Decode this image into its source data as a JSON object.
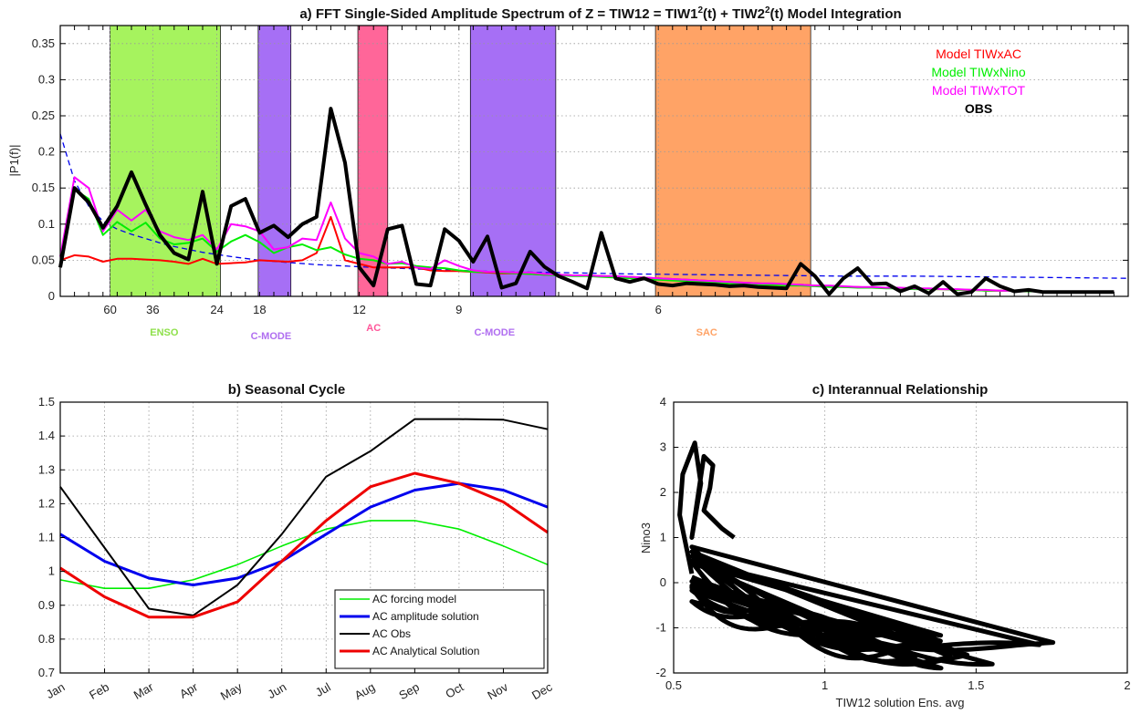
{
  "chart_data": [
    {
      "panel": "a",
      "type": "line",
      "title_parts": [
        "a) FFT Single-Sided Amplitude Spectrum of Z = TIW12 = TIW1",
        "2",
        "(t) + TIW2",
        "2",
        "(t) Model Integration"
      ],
      "ylabel": "|P1(f)|",
      "ylim": [
        0,
        0.375
      ],
      "yticks": [
        "0",
        "0.05",
        "0.1",
        "0.15",
        "0.2",
        "0.25",
        "0.3",
        "0.35"
      ],
      "xlim": [
        0,
        75
      ],
      "xticks": [
        {
          "x": 3.5,
          "label": "60"
        },
        {
          "x": 6.5,
          "label": "36"
        },
        {
          "x": 11,
          "label": "24"
        },
        {
          "x": 14,
          "label": "18"
        },
        {
          "x": 21,
          "label": "12"
        },
        {
          "x": 28,
          "label": "9"
        },
        {
          "x": 42,
          "label": "6"
        }
      ],
      "bands": [
        {
          "x0": 3.5,
          "x1": 11.25,
          "color": "#a6f35e",
          "label": "ENSO",
          "label_color": "#8ee04a",
          "label_x": 7.3,
          "label_row": 1
        },
        {
          "x0": 13.9,
          "x1": 16.2,
          "color": "#a66ff5",
          "label": "C-MODE",
          "label_color": "#b06ef0",
          "label_x": 14.8,
          "label_row": 2
        },
        {
          "x0": 20.9,
          "x1": 23.0,
          "color": "#ff6699",
          "label": "AC",
          "label_color": "#ff5599",
          "label_x": 22.0,
          "label_row": 0
        },
        {
          "x0": 28.8,
          "x1": 34.8,
          "color": "#a66ff5",
          "label": "C-MODE",
          "label_color": "#b06ef0",
          "label_x": 30.5,
          "label_row": 1
        },
        {
          "x0": 41.8,
          "x1": 52.7,
          "color": "#ffa366",
          "label": "SAC",
          "label_color": "#ffa366",
          "label_x": 45.4,
          "label_row": 1
        }
      ],
      "series": [
        {
          "name": "OBS",
          "color": "#000000",
          "width": 4,
          "values": [
            0.04,
            0.15,
            0.13,
            0.095,
            0.125,
            0.172,
            0.127,
            0.085,
            0.06,
            0.051,
            0.145,
            0.045,
            0.125,
            0.135,
            0.088,
            0.098,
            0.082,
            0.1,
            0.11,
            0.26,
            0.185,
            0.04,
            0.015,
            0.093,
            0.098,
            0.017,
            0.015,
            0.093,
            0.077,
            0.048,
            0.083,
            0.012,
            0.018,
            0.062,
            0.041,
            0.028,
            0.02,
            0.011,
            0.088,
            0.025,
            0.02,
            0.025,
            0.017,
            0.015,
            0.018,
            0.017,
            0.016,
            0.014,
            0.015,
            0.013,
            0.012,
            0.011,
            0.045,
            0.028,
            0.003,
            0.025,
            0.039,
            0.017,
            0.018,
            0.007,
            0.014,
            0.004,
            0.02,
            0.003,
            0.006,
            0.025,
            0.014,
            0.007,
            0.009,
            0.006,
            0.006,
            0.006,
            0.006,
            0.006,
            0.006
          ]
        },
        {
          "name": "Model TIWxAC",
          "color": "#ff0000",
          "width": 2,
          "values": [
            0.05,
            0.057,
            0.055,
            0.048,
            0.052,
            0.052,
            0.051,
            0.05,
            0.048,
            0.045,
            0.052,
            0.045,
            0.046,
            0.047,
            0.05,
            0.049,
            0.048,
            0.05,
            0.06,
            0.11,
            0.05,
            0.045,
            0.04,
            0.04,
            0.04,
            0.04,
            0.036,
            0.035,
            0.035,
            0.034,
            0.033,
            0.032,
            0.032,
            0.031,
            0.03,
            0.03,
            0.029,
            0.029,
            0.028,
            0.027,
            0.027,
            0.026,
            0.025,
            0.024,
            0.023,
            0.022,
            0.021,
            0.02,
            0.019,
            0.018,
            0.017,
            0.016,
            0.016,
            0.015,
            0.014,
            0.013,
            0.013,
            0.012,
            0.012,
            0.011,
            0.011,
            0.01,
            0.01,
            0.009,
            0.009,
            0.008,
            0.008,
            0.008,
            0.007,
            0.007,
            0.007,
            0.007,
            0.006,
            0.006,
            0.006
          ]
        },
        {
          "name": "Model TIWxNino",
          "color": "#00ee00",
          "width": 2,
          "values": [
            0.045,
            0.148,
            0.135,
            0.085,
            0.103,
            0.09,
            0.102,
            0.08,
            0.072,
            0.074,
            0.08,
            0.062,
            0.076,
            0.085,
            0.075,
            0.06,
            0.068,
            0.072,
            0.064,
            0.068,
            0.058,
            0.052,
            0.05,
            0.045,
            0.046,
            0.042,
            0.04,
            0.039,
            0.036,
            0.034,
            0.034,
            0.033,
            0.032,
            0.031,
            0.03,
            0.029,
            0.028,
            0.028,
            0.027,
            0.026,
            0.025,
            0.024,
            0.023,
            0.022,
            0.021,
            0.02,
            0.019,
            0.018,
            0.017,
            0.016,
            0.016,
            0.015,
            0.015,
            0.014,
            0.013,
            0.013,
            0.012,
            0.012,
            0.011,
            0.011,
            0.01,
            0.01,
            0.01,
            0.009,
            0.009,
            0.008,
            0.008,
            0.008,
            0.007,
            0.007,
            0.007,
            0.006,
            0.006,
            0.006,
            0.006
          ]
        },
        {
          "name": "Model TIWxTOT",
          "color": "#ff00ff",
          "width": 2,
          "values": [
            0.055,
            0.165,
            0.15,
            0.09,
            0.12,
            0.105,
            0.12,
            0.09,
            0.082,
            0.078,
            0.085,
            0.065,
            0.1,
            0.097,
            0.09,
            0.065,
            0.068,
            0.08,
            0.078,
            0.13,
            0.08,
            0.06,
            0.055,
            0.045,
            0.048,
            0.04,
            0.038,
            0.05,
            0.042,
            0.036,
            0.034,
            0.034,
            0.033,
            0.033,
            0.031,
            0.03,
            0.029,
            0.029,
            0.028,
            0.028,
            0.027,
            0.026,
            0.025,
            0.024,
            0.023,
            0.022,
            0.021,
            0.02,
            0.019,
            0.018,
            0.018,
            0.017,
            0.016,
            0.015,
            0.015,
            0.014,
            0.013,
            0.013,
            0.012,
            0.012,
            0.011,
            0.011,
            0.01,
            0.01,
            0.009,
            0.009,
            0.008,
            0.008,
            0.008,
            0.007,
            0.007,
            0.007,
            0.007,
            0.006,
            0.006
          ]
        },
        {
          "name": "fit",
          "color": "#0000ee",
          "width": 1.3,
          "dashed": true,
          "x": [
            0,
            1,
            2,
            3,
            4,
            5,
            6,
            7,
            8,
            9,
            10,
            12,
            14,
            16,
            18,
            20,
            22,
            25,
            28,
            31,
            35,
            40,
            45,
            50,
            55,
            60,
            65,
            70,
            75
          ],
          "values": [
            0.225,
            0.16,
            0.125,
            0.104,
            0.093,
            0.086,
            0.08,
            0.074,
            0.069,
            0.065,
            0.061,
            0.055,
            0.05,
            0.047,
            0.044,
            0.042,
            0.04,
            0.038,
            0.036,
            0.034,
            0.033,
            0.031,
            0.03,
            0.029,
            0.028,
            0.028,
            0.027,
            0.026,
            0.025
          ]
        }
      ],
      "legend": [
        "Model TIWxAC",
        "Model TIWxNino",
        "Model TIWxTOT",
        "OBS"
      ],
      "legend_colors": [
        "#ff0000",
        "#00ee00",
        "#ff00ff",
        "#000000"
      ],
      "legend_placement": "top-right",
      "grid": true
    },
    {
      "panel": "b",
      "type": "line",
      "title": "b) Seasonal Cycle",
      "categories": [
        "Jan",
        "Feb",
        "Mar",
        "Apr",
        "May",
        "Jun",
        "Jul",
        "Aug",
        "Sep",
        "Oct",
        "Nov",
        "Dec"
      ],
      "ylim": [
        0.7,
        1.5
      ],
      "yticks": [
        "0.7",
        "0.8",
        "0.9",
        "1",
        "1.1",
        "1.2",
        "1.3",
        "1.4",
        "1.5"
      ],
      "series": [
        {
          "name": "AC forcing model",
          "color": "#00ee00",
          "width": 1.6,
          "values": [
            0.975,
            0.95,
            0.95,
            0.975,
            1.02,
            1.075,
            1.125,
            1.15,
            1.15,
            1.125,
            1.075,
            1.02
          ]
        },
        {
          "name": "AC amplitude solution",
          "color": "#0000ee",
          "width": 3,
          "values": [
            1.11,
            1.03,
            0.98,
            0.96,
            0.98,
            1.03,
            1.11,
            1.19,
            1.24,
            1.26,
            1.24,
            1.19
          ]
        },
        {
          "name": "AC Obs",
          "color": "#000000",
          "width": 2,
          "values": [
            1.25,
            1.07,
            0.89,
            0.87,
            0.96,
            1.11,
            1.28,
            1.355,
            1.45,
            1.45,
            1.448,
            1.42
          ]
        },
        {
          "name": "AC Analytical Solution",
          "color": "#ee0000",
          "width": 3,
          "values": [
            1.01,
            0.925,
            0.865,
            0.865,
            0.91,
            1.03,
            1.15,
            1.25,
            1.29,
            1.26,
            1.205,
            1.115
          ]
        }
      ],
      "legend_placement": "bottom-right",
      "grid": true
    },
    {
      "panel": "c",
      "type": "scatter",
      "title": "c) Interannual Relationship",
      "xlabel": "TIW12 solution Ens. avg",
      "ylabel": "Nino3",
      "xlim": [
        0.5,
        2
      ],
      "ylim": [
        -2,
        4
      ],
      "xticks": [
        "0.5",
        "1",
        "1.5",
        "2"
      ],
      "yticks": [
        "-2",
        "-1",
        "0",
        "1",
        "2",
        "3",
        "4"
      ],
      "color": "#000000",
      "grid": true
    }
  ]
}
